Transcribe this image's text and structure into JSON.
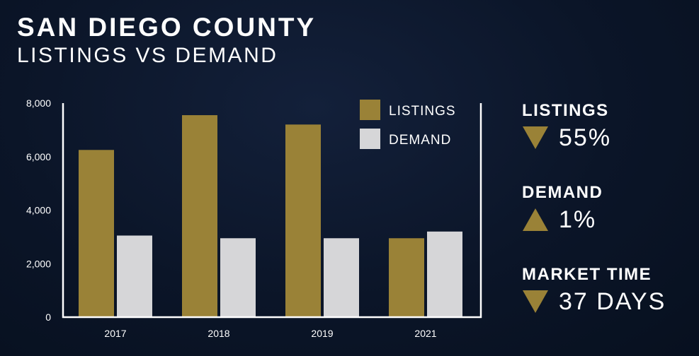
{
  "title": "SAN DIEGO COUNTY",
  "subtitle": "LISTINGS VS DEMAND",
  "chart_data": {
    "type": "bar",
    "categories": [
      "2017",
      "2018",
      "2019",
      "2021"
    ],
    "series": [
      {
        "name": "LISTINGS",
        "values": [
          6250,
          7550,
          7200,
          2950
        ],
        "color": "#9a8237"
      },
      {
        "name": "DEMAND",
        "values": [
          3050,
          2950,
          2950,
          3200
        ],
        "color": "#d6d6d8"
      }
    ],
    "ylim": [
      0,
      8000
    ],
    "yticks": [
      0,
      2000,
      4000,
      6000,
      8000
    ],
    "ytick_labels": [
      "0",
      "2,000",
      "4,000",
      "6,000",
      "8,000"
    ],
    "xlabel": "",
    "ylabel": "",
    "legend_position": "top-right",
    "axis_color": "#ffffff"
  },
  "stats": [
    {
      "label": "LISTINGS",
      "direction": "down",
      "value": "55%"
    },
    {
      "label": "DEMAND",
      "direction": "up",
      "value": "1%"
    },
    {
      "label": "MARKET TIME",
      "direction": "down",
      "value": "37 DAYS"
    }
  ],
  "accent_color": "#9a8237"
}
